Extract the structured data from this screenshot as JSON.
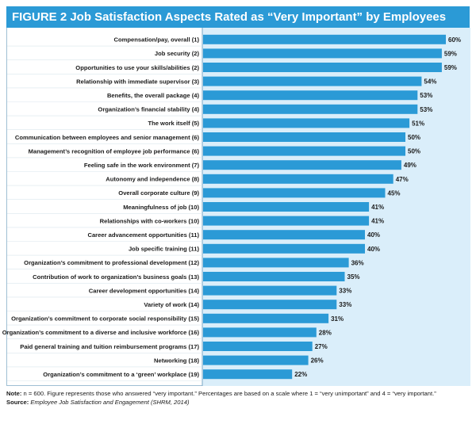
{
  "chart_data": {
    "type": "bar",
    "orientation": "horizontal",
    "title": "FIGURE 2 Job Satisfaction Aspects Rated as “Very Important” by Employees",
    "categories": [
      "Compensation/pay, overall (1)",
      "Job security (2)",
      "Opportunities to use your skills/abilities (2)",
      "Relationship with immediate supervisor (3)",
      "Benefits, the overall package (4)",
      "Organization’s financial stability (4)",
      "The work itself (5)",
      "Communication between employees and senior management (6)",
      "Management’s recognition of employee job performance (6)",
      "Feeling safe in the work environment (7)",
      "Autonomy and independence (8)",
      "Overall corporate culture (9)",
      "Meaningfulness of job (10)",
      "Relationships with co-workers (10)",
      "Career advancement opportunities (11)",
      "Job specific training (11)",
      "Organization’s commitment to professional development (12)",
      "Contribution of work to organization’s business goals (13)",
      "Career development opportunities (14)",
      "Variety of work (14)",
      "Organization’s commitment to corporate social responsibility (15)",
      "Organization’s commitment to a diverse and inclusive workforce (16)",
      "Paid general training and tuition reimbursement programs (17)",
      "Networking (18)",
      "Organization’s commitment to a ‘green’ workplace (19)"
    ],
    "values": [
      60,
      59,
      59,
      54,
      53,
      53,
      51,
      50,
      50,
      49,
      47,
      45,
      41,
      41,
      40,
      40,
      36,
      35,
      33,
      33,
      31,
      28,
      27,
      26,
      22
    ],
    "value_suffix": "%",
    "xlim": [
      0,
      60
    ],
    "grid": false,
    "legend": "none"
  },
  "colors": {
    "title_bar": "#2b9ad6",
    "bar": "#2b9ad6",
    "plot_background": "#daeefa",
    "divider": "#7aa7c4"
  },
  "footer": {
    "note_prefix": "Note:",
    "note_text": " n = 600. Figure represents those who answered “very important.” Percentages are based on a scale where 1 = “very unimportant” and 4 = “very important.”",
    "source_prefix": "Source:",
    "source_text": "Employee Job Satisfaction and Engagement (SHRM, 2014)"
  }
}
